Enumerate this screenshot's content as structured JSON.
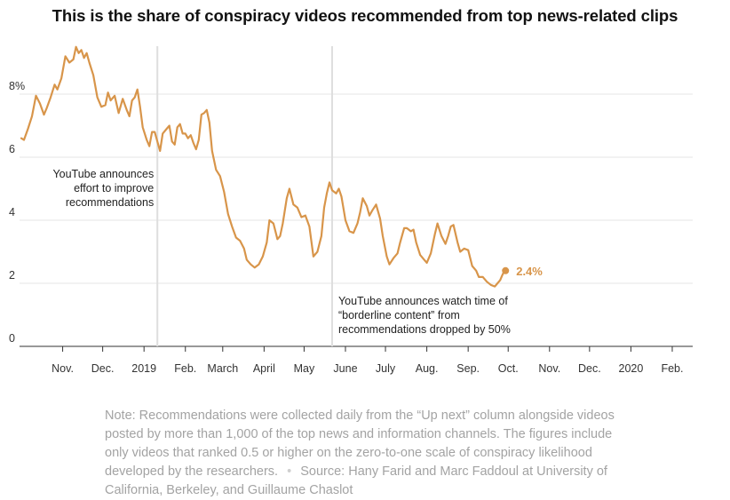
{
  "chart_data": {
    "type": "line",
    "title": "This is the share of conspiracy videos recommended from top news-related clips",
    "ylim": [
      0,
      10
    ],
    "yticks": [
      {
        "value": 0,
        "label": "0"
      },
      {
        "value": 2,
        "label": "2"
      },
      {
        "value": 4,
        "label": "4"
      },
      {
        "value": 6,
        "label": "6"
      },
      {
        "value": 8,
        "label": "8%"
      }
    ],
    "xlim": [
      "2018-10-15",
      "2020-02-29"
    ],
    "xticks": [
      {
        "date": "2018-11-15",
        "label": "Nov."
      },
      {
        "date": "2018-12-15",
        "label": "Dec."
      },
      {
        "date": "2019-01-15",
        "label": "2019"
      },
      {
        "date": "2019-02-15",
        "label": "Feb."
      },
      {
        "date": "2019-03-15",
        "label": "March"
      },
      {
        "date": "2019-04-15",
        "label": "April"
      },
      {
        "date": "2019-05-15",
        "label": "May"
      },
      {
        "date": "2019-06-15",
        "label": "June"
      },
      {
        "date": "2019-07-15",
        "label": "July"
      },
      {
        "date": "2019-08-15",
        "label": "Aug."
      },
      {
        "date": "2019-09-15",
        "label": "Sep."
      },
      {
        "date": "2019-10-15",
        "label": "Oct."
      },
      {
        "date": "2019-11-15",
        "label": "Nov."
      },
      {
        "date": "2019-12-15",
        "label": "Dec."
      },
      {
        "date": "2020-01-15",
        "label": "2020"
      },
      {
        "date": "2020-02-15",
        "label": "Feb."
      }
    ],
    "series": [
      {
        "color": "#d8954a",
        "end_label": "2.4%",
        "points": [
          [
            "2018-10-15",
            6.6
          ],
          [
            "2018-10-17",
            6.55
          ],
          [
            "2018-10-20",
            6.9
          ],
          [
            "2018-10-23",
            7.3
          ],
          [
            "2018-10-26",
            7.95
          ],
          [
            "2018-10-29",
            7.7
          ],
          [
            "2018-11-01",
            7.35
          ],
          [
            "2018-11-03",
            7.55
          ],
          [
            "2018-11-06",
            7.9
          ],
          [
            "2018-11-09",
            8.3
          ],
          [
            "2018-11-11",
            8.15
          ],
          [
            "2018-11-14",
            8.5
          ],
          [
            "2018-11-17",
            9.2
          ],
          [
            "2018-11-20",
            9.0
          ],
          [
            "2018-11-23",
            9.1
          ],
          [
            "2018-11-25",
            9.5
          ],
          [
            "2018-11-27",
            9.3
          ],
          [
            "2018-11-29",
            9.4
          ],
          [
            "2018-12-01",
            9.15
          ],
          [
            "2018-12-03",
            9.3
          ],
          [
            "2018-12-05",
            9.0
          ],
          [
            "2018-12-08",
            8.6
          ],
          [
            "2018-12-11",
            7.9
          ],
          [
            "2018-12-14",
            7.6
          ],
          [
            "2018-12-17",
            7.65
          ],
          [
            "2018-12-19",
            8.05
          ],
          [
            "2018-12-21",
            7.8
          ],
          [
            "2018-12-24",
            7.95
          ],
          [
            "2018-12-27",
            7.4
          ],
          [
            "2018-12-30",
            7.85
          ],
          [
            "2019-01-02",
            7.5
          ],
          [
            "2019-01-04",
            7.3
          ],
          [
            "2019-01-06",
            7.8
          ],
          [
            "2019-01-08",
            7.9
          ],
          [
            "2019-01-10",
            8.15
          ],
          [
            "2019-01-12",
            7.6
          ],
          [
            "2019-01-14",
            6.95
          ],
          [
            "2019-01-17",
            6.55
          ],
          [
            "2019-01-19",
            6.35
          ],
          [
            "2019-01-21",
            6.8
          ],
          [
            "2019-01-23",
            6.8
          ],
          [
            "2019-01-25",
            6.5
          ],
          [
            "2019-01-27",
            6.2
          ],
          [
            "2019-01-29",
            6.75
          ],
          [
            "2019-02-01",
            6.9
          ],
          [
            "2019-02-03",
            7.0
          ],
          [
            "2019-02-05",
            6.5
          ],
          [
            "2019-02-07",
            6.4
          ],
          [
            "2019-02-09",
            6.95
          ],
          [
            "2019-02-11",
            7.05
          ],
          [
            "2019-02-13",
            6.75
          ],
          [
            "2019-02-15",
            6.75
          ],
          [
            "2019-02-17",
            6.6
          ],
          [
            "2019-02-19",
            6.7
          ],
          [
            "2019-02-21",
            6.45
          ],
          [
            "2019-02-23",
            6.25
          ],
          [
            "2019-02-25",
            6.55
          ],
          [
            "2019-02-27",
            7.35
          ],
          [
            "2019-03-01",
            7.4
          ],
          [
            "2019-03-03",
            7.5
          ],
          [
            "2019-03-05",
            7.1
          ],
          [
            "2019-03-07",
            6.2
          ],
          [
            "2019-03-10",
            5.6
          ],
          [
            "2019-03-13",
            5.4
          ],
          [
            "2019-03-16",
            4.9
          ],
          [
            "2019-03-19",
            4.2
          ],
          [
            "2019-03-22",
            3.8
          ],
          [
            "2019-03-25",
            3.45
          ],
          [
            "2019-03-28",
            3.35
          ],
          [
            "2019-03-31",
            3.1
          ],
          [
            "2019-04-02",
            2.75
          ],
          [
            "2019-04-05",
            2.6
          ],
          [
            "2019-04-08",
            2.5
          ],
          [
            "2019-04-11",
            2.6
          ],
          [
            "2019-04-14",
            2.85
          ],
          [
            "2019-04-17",
            3.3
          ],
          [
            "2019-04-19",
            4.0
          ],
          [
            "2019-04-22",
            3.9
          ],
          [
            "2019-04-25",
            3.4
          ],
          [
            "2019-04-27",
            3.5
          ],
          [
            "2019-04-29",
            3.9
          ],
          [
            "2019-05-02",
            4.7
          ],
          [
            "2019-05-04",
            5.0
          ],
          [
            "2019-05-07",
            4.5
          ],
          [
            "2019-05-10",
            4.4
          ],
          [
            "2019-05-13",
            4.1
          ],
          [
            "2019-05-16",
            4.15
          ],
          [
            "2019-05-19",
            3.8
          ],
          [
            "2019-05-22",
            2.85
          ],
          [
            "2019-05-25",
            3.0
          ],
          [
            "2019-05-28",
            3.5
          ],
          [
            "2019-05-30",
            4.4
          ],
          [
            "2019-06-01",
            4.85
          ],
          [
            "2019-06-03",
            5.2
          ],
          [
            "2019-06-05",
            4.95
          ],
          [
            "2019-06-08",
            4.85
          ],
          [
            "2019-06-10",
            5.0
          ],
          [
            "2019-06-12",
            4.75
          ],
          [
            "2019-06-15",
            4.0
          ],
          [
            "2019-06-18",
            3.65
          ],
          [
            "2019-06-21",
            3.6
          ],
          [
            "2019-06-24",
            3.9
          ],
          [
            "2019-06-26",
            4.25
          ],
          [
            "2019-06-28",
            4.7
          ],
          [
            "2019-07-01",
            4.45
          ],
          [
            "2019-07-03",
            4.15
          ],
          [
            "2019-07-05",
            4.3
          ],
          [
            "2019-07-08",
            4.5
          ],
          [
            "2019-07-11",
            4.05
          ],
          [
            "2019-07-13",
            3.5
          ],
          [
            "2019-07-16",
            2.85
          ],
          [
            "2019-07-18",
            2.6
          ],
          [
            "2019-07-21",
            2.8
          ],
          [
            "2019-07-24",
            2.95
          ],
          [
            "2019-07-26",
            3.3
          ],
          [
            "2019-07-29",
            3.75
          ],
          [
            "2019-07-31",
            3.75
          ],
          [
            "2019-08-03",
            3.65
          ],
          [
            "2019-08-05",
            3.7
          ],
          [
            "2019-08-07",
            3.3
          ],
          [
            "2019-08-10",
            2.9
          ],
          [
            "2019-08-13",
            2.75
          ],
          [
            "2019-08-15",
            2.65
          ],
          [
            "2019-08-18",
            2.95
          ],
          [
            "2019-08-21",
            3.55
          ],
          [
            "2019-08-23",
            3.9
          ],
          [
            "2019-08-26",
            3.5
          ],
          [
            "2019-08-29",
            3.25
          ],
          [
            "2019-08-31",
            3.5
          ],
          [
            "2019-09-02",
            3.8
          ],
          [
            "2019-09-04",
            3.85
          ],
          [
            "2019-09-07",
            3.3
          ],
          [
            "2019-09-09",
            3.0
          ],
          [
            "2019-09-12",
            3.1
          ],
          [
            "2019-09-15",
            3.05
          ],
          [
            "2019-09-18",
            2.55
          ],
          [
            "2019-09-21",
            2.4
          ],
          [
            "2019-09-23",
            2.2
          ],
          [
            "2019-09-26",
            2.2
          ],
          [
            "2019-09-29",
            2.05
          ],
          [
            "2019-10-02",
            1.95
          ],
          [
            "2019-10-05",
            1.9
          ],
          [
            "2019-10-07",
            2.0
          ],
          [
            "2019-10-09",
            2.1
          ],
          [
            "2019-10-11",
            2.3
          ],
          [
            "2019-10-13",
            2.4
          ]
        ]
      }
    ],
    "annotations": [
      {
        "date": "2019-01-25",
        "lines": [
          "YouTube announces",
          "effort to improve",
          "recommendations"
        ]
      },
      {
        "date": "2019-06-05",
        "lines": [
          "YouTube announces watch time of",
          "“borderline content” from",
          "recommendations dropped by 50%"
        ]
      }
    ]
  },
  "note": {
    "text": "Note: Recommendations were collected daily from the “Up next” column alongside videos posted by more than 1,000 of the top news and information channels. The figures include only videos that ranked 0.5 or higher on the zero-to-one scale of conspiracy likelihood developed by the researchers.",
    "separator": "•",
    "source": "Source: Hany Farid and Marc Faddoul at University of California, Berkeley, and Guillaume Chaslot"
  }
}
